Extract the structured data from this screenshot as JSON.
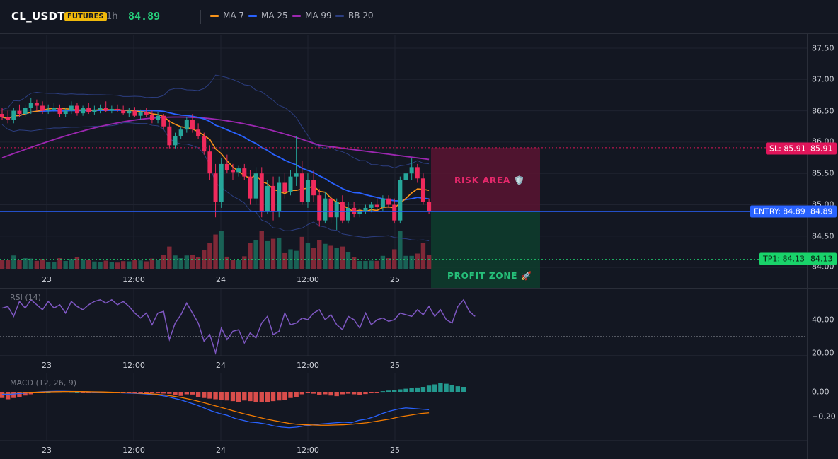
{
  "header": {
    "symbol": "CL_USDT",
    "badge": "FUTURES",
    "timeframe": "1h",
    "price": "84.89",
    "legend": [
      {
        "label": "MA 7",
        "color": "#f7931a"
      },
      {
        "label": "MA 25",
        "color": "#2962ff"
      },
      {
        "label": "MA 99",
        "color": "#9c27b0"
      },
      {
        "label": "BB 20",
        "color": "#2c3e80"
      }
    ]
  },
  "price_axis": [
    "87.50",
    "87.00",
    "86.50",
    "86.00",
    "85.50",
    "85.00",
    "84.50",
    "84.00"
  ],
  "time_axis": [
    "23",
    "12:00",
    "24",
    "12:00",
    "25"
  ],
  "levels": {
    "sl": {
      "label": "SL: 85.91",
      "value": "85.91",
      "color": "#e0155a"
    },
    "entry": {
      "label": "ENTRY: 84.89",
      "value": "84.89",
      "color": "#2962ff"
    },
    "tp1": {
      "label": "TP1: 84.13",
      "value": "84.13",
      "color": "#1fbf6a"
    }
  },
  "zones": {
    "risk": "RISK AREA 🛡️",
    "profit": "PROFIT ZONE 🚀"
  },
  "rsi": {
    "title": "RSI (14)",
    "axis": [
      "40.00",
      "20.00"
    ],
    "color": "#7e57c2",
    "values": [
      47,
      48,
      42,
      51,
      47,
      52,
      49,
      46,
      51,
      47,
      49,
      44,
      51,
      48,
      46,
      49,
      51,
      52,
      50,
      52,
      49,
      51,
      48,
      44,
      41,
      44,
      37,
      44,
      45,
      28,
      38,
      43,
      50,
      44,
      38,
      27,
      31,
      20,
      35,
      28,
      33,
      34,
      26,
      32,
      29,
      38,
      42,
      31,
      33,
      44,
      37,
      38,
      41,
      40,
      44,
      46,
      40,
      43,
      37,
      34,
      42,
      40,
      35,
      44,
      37,
      40,
      41,
      39,
      40,
      44,
      43,
      42,
      46,
      43,
      48,
      42,
      46,
      40,
      38,
      48,
      52,
      45,
      42
    ]
  },
  "macd": {
    "title": "MACD (12, 26, 9)",
    "axis": [
      "0.00",
      "−0.20"
    ],
    "macd_color": "#2962ff",
    "signal_color": "#f57c00",
    "hist_values": [
      -0.05,
      -0.06,
      -0.05,
      -0.04,
      -0.03,
      -0.02,
      -0.01,
      -0.005,
      0.0,
      0.003,
      0.004,
      0.005,
      0.003,
      0.0,
      -0.002,
      -0.004,
      -0.003,
      -0.004,
      -0.005,
      -0.008,
      -0.01,
      -0.006,
      -0.004,
      -0.003,
      -0.002,
      -0.005,
      -0.01,
      -0.012,
      -0.014,
      -0.016,
      -0.025,
      -0.033,
      -0.02,
      -0.022,
      -0.04,
      -0.05,
      -0.055,
      -0.06,
      -0.065,
      -0.07,
      -0.075,
      -0.08,
      -0.07,
      -0.075,
      -0.08,
      -0.085,
      -0.08,
      -0.075,
      -0.07,
      -0.065,
      -0.05,
      -0.04,
      -0.02,
      -0.01,
      -0.015,
      -0.025,
      -0.02,
      -0.03,
      -0.035,
      -0.02,
      -0.015,
      -0.02,
      -0.025,
      -0.018,
      -0.01,
      -0.005,
      0.005,
      0.01,
      0.015,
      0.02,
      0.025,
      0.03,
      0.035,
      0.04,
      0.05,
      0.06,
      0.07,
      0.065,
      0.055,
      0.045,
      0.04
    ],
    "macd_values": [
      -0.02,
      -0.02,
      -0.015,
      -0.01,
      -0.005,
      0.0,
      0.003,
      0.004,
      0.004,
      0.003,
      0.002,
      0.0,
      -0.002,
      -0.004,
      -0.006,
      -0.008,
      -0.01,
      -0.012,
      -0.015,
      -0.02,
      -0.025,
      -0.035,
      -0.05,
      -0.065,
      -0.085,
      -0.105,
      -0.13,
      -0.155,
      -0.175,
      -0.19,
      -0.215,
      -0.23,
      -0.245,
      -0.25,
      -0.26,
      -0.275,
      -0.285,
      -0.29,
      -0.285,
      -0.275,
      -0.268,
      -0.26,
      -0.255,
      -0.25,
      -0.245,
      -0.25,
      -0.23,
      -0.22,
      -0.2,
      -0.175,
      -0.155,
      -0.14,
      -0.13,
      -0.135,
      -0.14,
      -0.145
    ],
    "signal_values": [
      -0.01,
      -0.01,
      -0.008,
      -0.006,
      -0.004,
      -0.002,
      0.0,
      0.001,
      0.002,
      0.002,
      0.002,
      0.001,
      0.0,
      -0.001,
      -0.003,
      -0.005,
      -0.007,
      -0.009,
      -0.012,
      -0.015,
      -0.02,
      -0.026,
      -0.035,
      -0.045,
      -0.058,
      -0.072,
      -0.088,
      -0.105,
      -0.122,
      -0.14,
      -0.158,
      -0.175,
      -0.19,
      -0.205,
      -0.22,
      -0.232,
      -0.244,
      -0.255,
      -0.262,
      -0.266,
      -0.268,
      -0.27,
      -0.27,
      -0.268,
      -0.266,
      -0.262,
      -0.256,
      -0.25,
      -0.24,
      -0.23,
      -0.22,
      -0.205,
      -0.195,
      -0.185,
      -0.175,
      -0.17
    ]
  },
  "chart_data": {
    "type": "candlestick",
    "title": "",
    "xlabel": "",
    "ylabel": "",
    "ylim": [
      84.0,
      87.7
    ],
    "x_ticks": [
      "23",
      "12:00",
      "24",
      "12:00",
      "25"
    ],
    "up_color": "#26a69a",
    "down_color": "#ef2a5c",
    "candles": [
      [
        86.45,
        86.55,
        86.35,
        86.4
      ],
      [
        86.4,
        86.5,
        86.3,
        86.35
      ],
      [
        86.35,
        86.55,
        86.3,
        86.5
      ],
      [
        86.5,
        86.6,
        86.4,
        86.45
      ],
      [
        86.45,
        86.6,
        86.4,
        86.55
      ],
      [
        86.55,
        86.7,
        86.45,
        86.62
      ],
      [
        86.62,
        86.68,
        86.5,
        86.58
      ],
      [
        86.58,
        86.65,
        86.45,
        86.5
      ],
      [
        86.5,
        86.6,
        86.45,
        86.52
      ],
      [
        86.52,
        86.62,
        86.48,
        86.55
      ],
      [
        86.55,
        86.6,
        86.4,
        86.45
      ],
      [
        86.45,
        86.55,
        86.4,
        86.5
      ],
      [
        86.5,
        86.65,
        86.45,
        86.58
      ],
      [
        86.58,
        86.62,
        86.42,
        86.46
      ],
      [
        86.46,
        86.58,
        86.42,
        86.55
      ],
      [
        86.55,
        86.62,
        86.45,
        86.48
      ],
      [
        86.48,
        86.58,
        86.44,
        86.52
      ],
      [
        86.52,
        86.6,
        86.46,
        86.55
      ],
      [
        86.55,
        86.65,
        86.48,
        86.5
      ],
      [
        86.5,
        86.58,
        86.46,
        86.53
      ],
      [
        86.53,
        86.6,
        86.48,
        86.51
      ],
      [
        86.51,
        86.58,
        86.44,
        86.46
      ],
      [
        86.46,
        86.55,
        86.4,
        86.5
      ],
      [
        86.5,
        86.56,
        86.4,
        86.42
      ],
      [
        86.42,
        86.52,
        86.36,
        86.48
      ],
      [
        86.48,
        86.55,
        86.4,
        86.44
      ],
      [
        86.44,
        86.5,
        86.3,
        86.35
      ],
      [
        86.35,
        86.48,
        86.3,
        86.42
      ],
      [
        86.42,
        86.45,
        86.2,
        86.25
      ],
      [
        86.25,
        86.35,
        85.9,
        85.95
      ],
      [
        85.95,
        86.15,
        85.9,
        86.1
      ],
      [
        86.1,
        86.25,
        86.05,
        86.2
      ],
      [
        86.2,
        86.4,
        86.15,
        86.35
      ],
      [
        86.35,
        86.45,
        86.15,
        86.2
      ],
      [
        86.2,
        86.3,
        86.05,
        86.1
      ],
      [
        86.1,
        86.15,
        85.8,
        85.85
      ],
      [
        85.85,
        85.95,
        85.4,
        85.5
      ],
      [
        85.5,
        85.65,
        84.8,
        85.05
      ],
      [
        85.05,
        85.75,
        84.95,
        85.65
      ],
      [
        85.65,
        85.8,
        85.5,
        85.55
      ],
      [
        85.55,
        85.65,
        85.4,
        85.52
      ],
      [
        85.52,
        85.62,
        85.45,
        85.58
      ],
      [
        85.58,
        85.65,
        85.4,
        85.45
      ],
      [
        85.45,
        85.55,
        85.0,
        85.1
      ],
      [
        85.1,
        85.6,
        85.0,
        85.5
      ],
      [
        85.5,
        85.6,
        84.8,
        84.9
      ],
      [
        84.9,
        85.4,
        84.85,
        85.3
      ],
      [
        85.3,
        85.45,
        84.75,
        84.9
      ],
      [
        84.9,
        85.45,
        84.8,
        85.35
      ],
      [
        85.35,
        85.5,
        85.1,
        85.2
      ],
      [
        85.2,
        85.55,
        85.15,
        85.45
      ],
      [
        85.45,
        86.1,
        85.3,
        85.5
      ],
      [
        85.5,
        85.7,
        85.0,
        85.05
      ],
      [
        85.05,
        85.5,
        84.95,
        85.4
      ],
      [
        85.4,
        85.55,
        85.05,
        85.15
      ],
      [
        85.15,
        85.25,
        84.65,
        84.75
      ],
      [
        84.75,
        85.2,
        84.7,
        85.1
      ],
      [
        85.1,
        85.2,
        84.7,
        84.8
      ],
      [
        84.8,
        85.1,
        84.6,
        85.05
      ],
      [
        85.05,
        85.15,
        84.7,
        84.75
      ],
      [
        84.75,
        85.05,
        84.7,
        84.95
      ],
      [
        84.95,
        85.05,
        84.8,
        84.85
      ],
      [
        84.85,
        84.95,
        84.8,
        84.9
      ],
      [
        84.9,
        85.0,
        84.85,
        84.95
      ],
      [
        84.95,
        85.05,
        84.88,
        85.0
      ],
      [
        85.0,
        85.1,
        84.92,
        84.96
      ],
      [
        84.96,
        85.15,
        84.9,
        85.1
      ],
      [
        85.1,
        85.15,
        84.95,
        85.0
      ],
      [
        85.0,
        85.1,
        84.7,
        84.75
      ],
      [
        84.75,
        85.45,
        84.7,
        85.4
      ],
      [
        85.4,
        85.6,
        85.25,
        85.5
      ],
      [
        85.5,
        85.75,
        85.4,
        85.6
      ],
      [
        85.6,
        85.65,
        85.35,
        85.42
      ],
      [
        85.42,
        85.5,
        85.0,
        85.05
      ],
      [
        85.05,
        85.1,
        84.85,
        84.89
      ]
    ]
  }
}
